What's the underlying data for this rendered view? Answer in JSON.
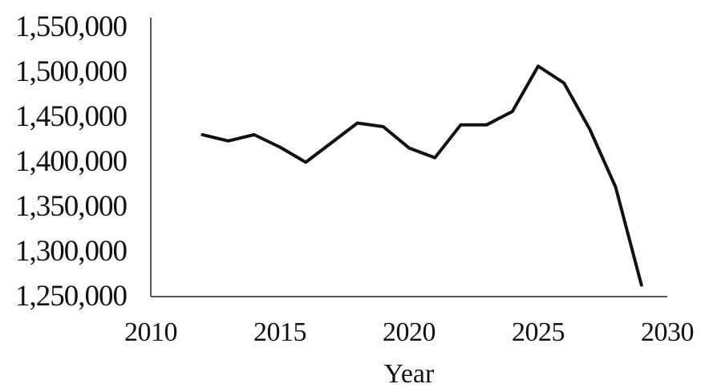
{
  "chart_data": {
    "type": "line",
    "title": "",
    "xlabel": "Year",
    "ylabel": "",
    "xlim": [
      2010,
      2030
    ],
    "ylim": [
      1250000,
      1550000
    ],
    "x_ticks": [
      "2010",
      "2015",
      "2020",
      "2025",
      "2030"
    ],
    "y_ticks": [
      "1,250,000",
      "1,300,000",
      "1,350,000",
      "1,400,000",
      "1,450,000",
      "1,500,000",
      "1,550,000"
    ],
    "grid": false,
    "legend": "none",
    "series": [
      {
        "color": "#111111",
        "x": [
          2012,
          2013,
          2014,
          2015,
          2016,
          2017,
          2018,
          2019,
          2020,
          2021,
          2022,
          2023,
          2024,
          2025,
          2026,
          2027,
          2028,
          2029
        ],
        "y": [
          1432000,
          1425000,
          1432000,
          1418000,
          1401000,
          1423000,
          1445000,
          1441000,
          1417000,
          1406000,
          1443000,
          1443000,
          1458000,
          1509000,
          1490000,
          1438000,
          1373000,
          1263000
        ]
      }
    ]
  }
}
